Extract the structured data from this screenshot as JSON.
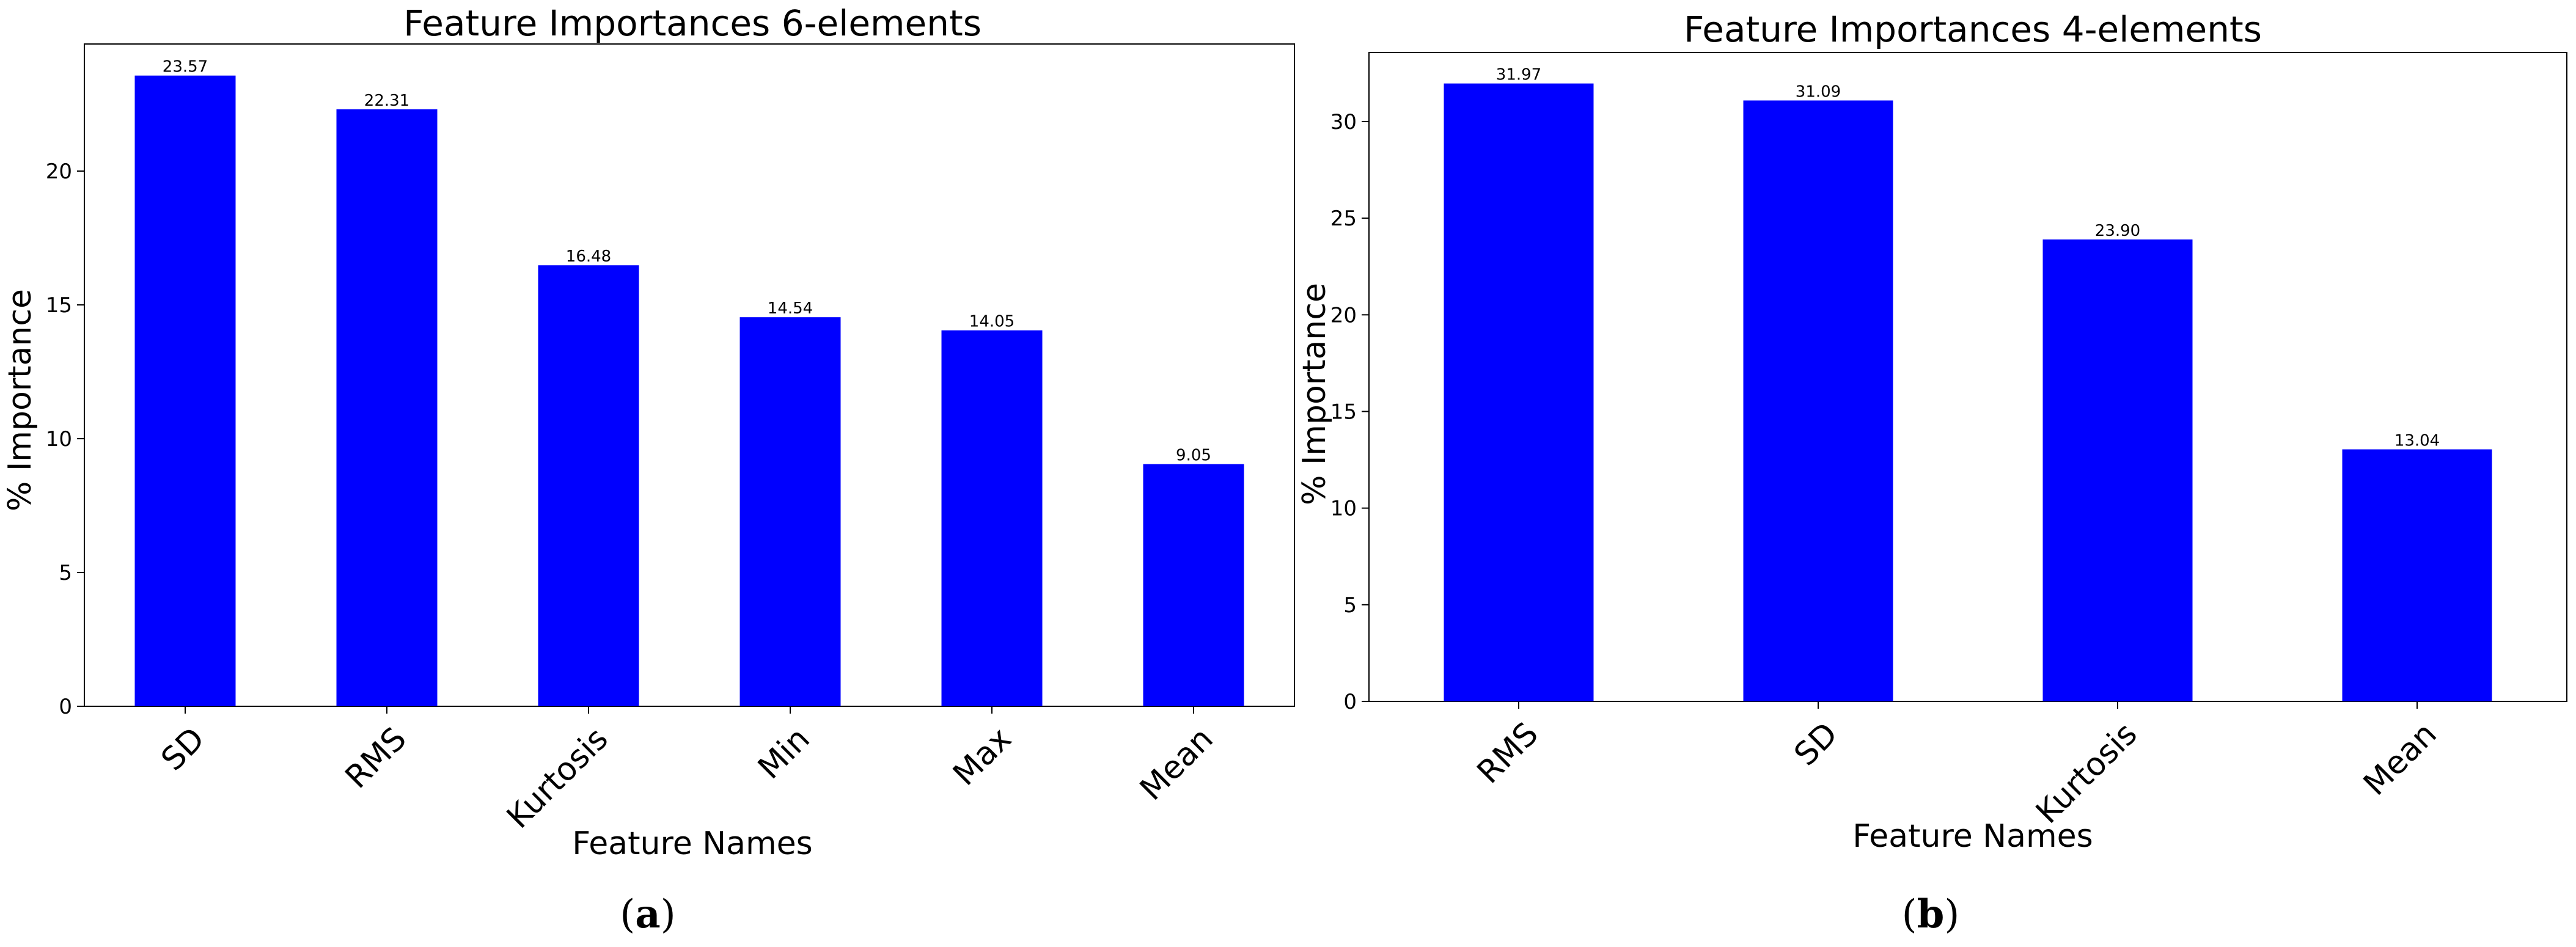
{
  "chart_data": [
    {
      "type": "bar",
      "title": "Feature Importances 6-elements",
      "xlabel": "Feature Names",
      "ylabel": "% Importance",
      "categories": [
        "SD",
        "RMS",
        "Kurtosis",
        "Min",
        "Max",
        "Mean"
      ],
      "values": [
        23.57,
        22.31,
        16.48,
        14.54,
        14.05,
        9.05
      ],
      "data_labels": [
        "23.57",
        "22.31",
        "16.48",
        "14.54",
        "14.05",
        "9.05"
      ],
      "ylim": [
        0,
        24.75
      ],
      "yticks": [
        0,
        5,
        10,
        15,
        20
      ],
      "bar_color": "#0000ff",
      "grid": false,
      "legend": "none",
      "caption_letter": "a"
    },
    {
      "type": "bar",
      "title": "Feature Importances 4-elements",
      "xlabel": "Feature Names",
      "ylabel": "% Importance",
      "categories": [
        "RMS",
        "SD",
        "Kurtosis",
        "Mean"
      ],
      "values": [
        31.97,
        31.09,
        23.9,
        13.04
      ],
      "data_labels": [
        "31.97",
        "31.09",
        "23.90",
        "13.04"
      ],
      "ylim": [
        0,
        33.57
      ],
      "yticks": [
        0,
        5,
        10,
        15,
        20,
        25,
        30
      ],
      "bar_color": "#0000ff",
      "grid": false,
      "legend": "none",
      "caption_letter": "b"
    }
  ]
}
